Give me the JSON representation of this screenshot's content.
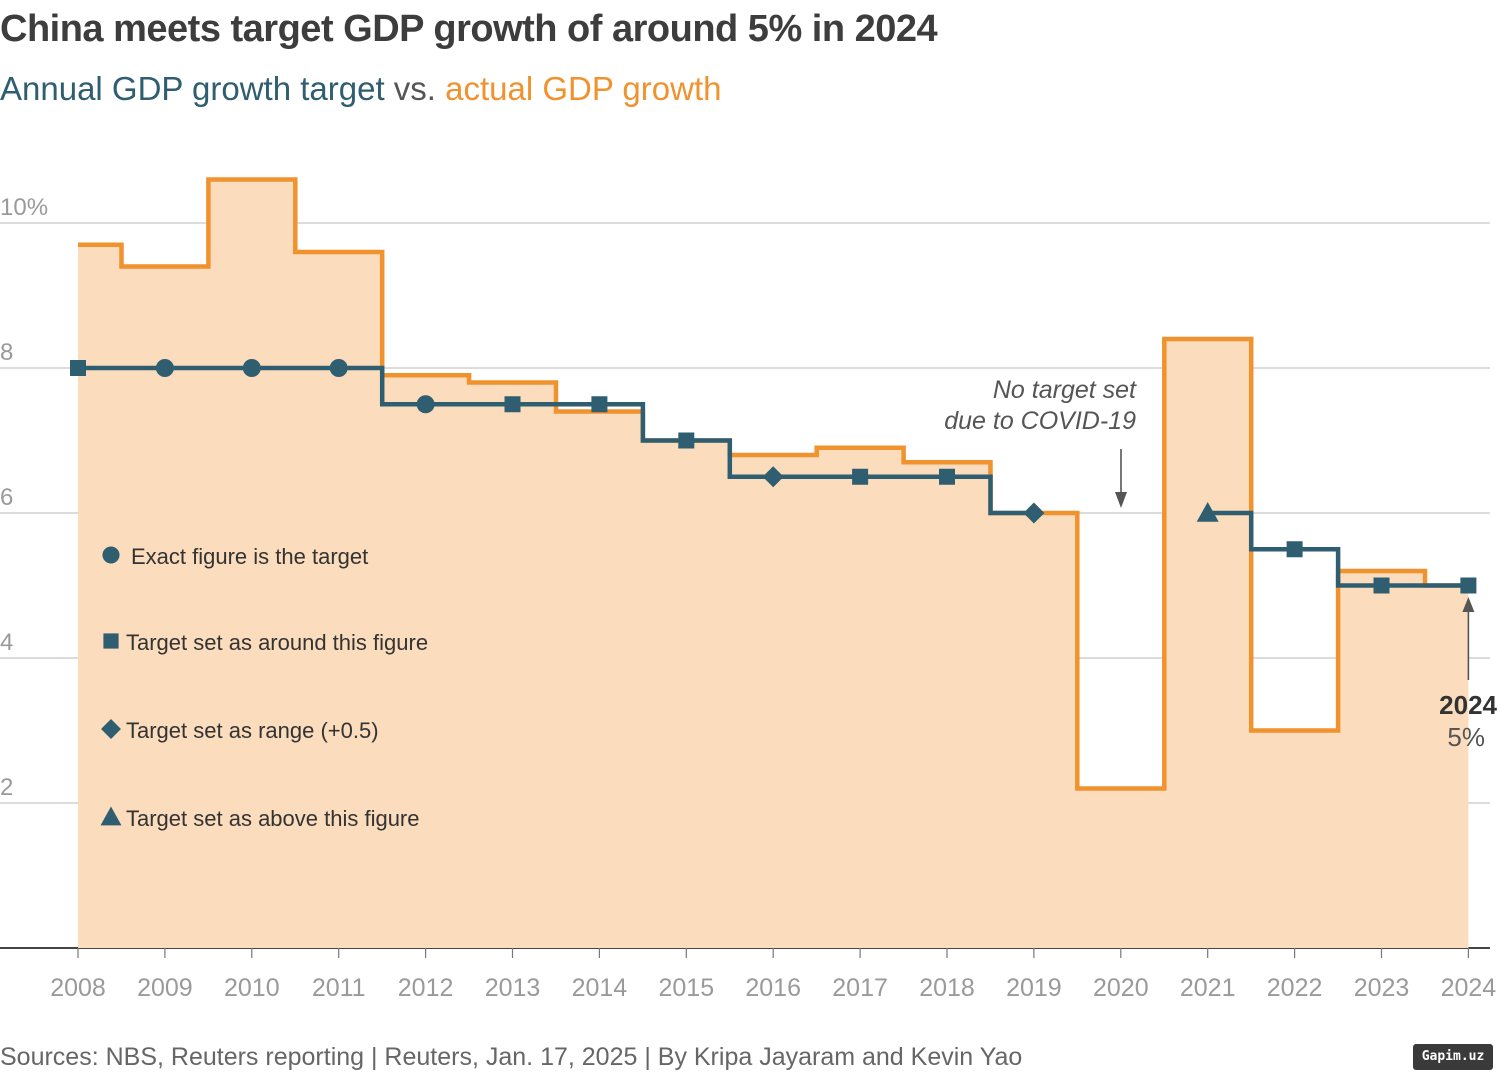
{
  "header": {
    "title": "China meets target GDP growth of around 5% in 2024",
    "subtitle_target": "Annual GDP growth target",
    "subtitle_vs": "vs.",
    "subtitle_actual": "actual GDP growth"
  },
  "chart_data": {
    "type": "line",
    "title": "China meets target GDP growth of around 5% in 2024",
    "subtitle": "Annual GDP growth target vs. actual GDP growth",
    "x": [
      "2008",
      "2009",
      "2010",
      "2011",
      "2012",
      "2013",
      "2014",
      "2015",
      "2016",
      "2017",
      "2018",
      "2019",
      "2020",
      "2021",
      "2022",
      "2023",
      "2024"
    ],
    "series": [
      {
        "name": "actual GDP growth",
        "style": "step area",
        "values": [
          9.7,
          9.4,
          10.6,
          9.6,
          7.9,
          7.8,
          7.4,
          7.0,
          6.8,
          6.9,
          6.7,
          6.0,
          2.2,
          8.4,
          3.0,
          5.2,
          5.0
        ]
      },
      {
        "name": "Annual GDP growth target",
        "style": "step line",
        "values": [
          8,
          8,
          8,
          8,
          7.5,
          7.5,
          7.5,
          7,
          6.5,
          6.5,
          6.5,
          6,
          null,
          6,
          5.5,
          5,
          5
        ],
        "marker_types": [
          "square",
          "circle",
          "circle",
          "circle",
          "circle",
          "square",
          "square",
          "square",
          "diamond",
          "square",
          "square",
          "diamond",
          null,
          "triangle",
          "square",
          "square",
          "square"
        ]
      }
    ],
    "ylim": [
      0,
      11
    ],
    "yticks": [
      {
        "value": 10,
        "label": "10%"
      },
      {
        "value": 8,
        "label": "8"
      },
      {
        "value": 6,
        "label": "6"
      },
      {
        "value": 4,
        "label": "4"
      },
      {
        "value": 2,
        "label": "2"
      }
    ],
    "grid": true,
    "colors": {
      "actual": "#f0922e",
      "fill": "#fbdcbc",
      "target": "#2e5e70",
      "grid": "#c8c8c8",
      "axis": "#444444",
      "tick_text": "#9a9a9a"
    },
    "legend": [
      {
        "marker": "circle",
        "label": "Exact figure is the target"
      },
      {
        "marker": "square",
        "label": "Target set as around this figure"
      },
      {
        "marker": "diamond",
        "label": "Target set as range (+0.5)"
      },
      {
        "marker": "triangle",
        "label": "Target set as above this figure"
      }
    ],
    "annotations": {
      "covid_line1": "No target set",
      "covid_line2": "due to COVID-19",
      "end_year": "2024",
      "end_value": "5%"
    }
  },
  "footer": {
    "source": "Sources: NBS, Reuters reporting | Reuters, Jan. 17, 2025 | By Kripa Jayaram and Kevin Yao",
    "watermark": "Gapim.uz"
  }
}
